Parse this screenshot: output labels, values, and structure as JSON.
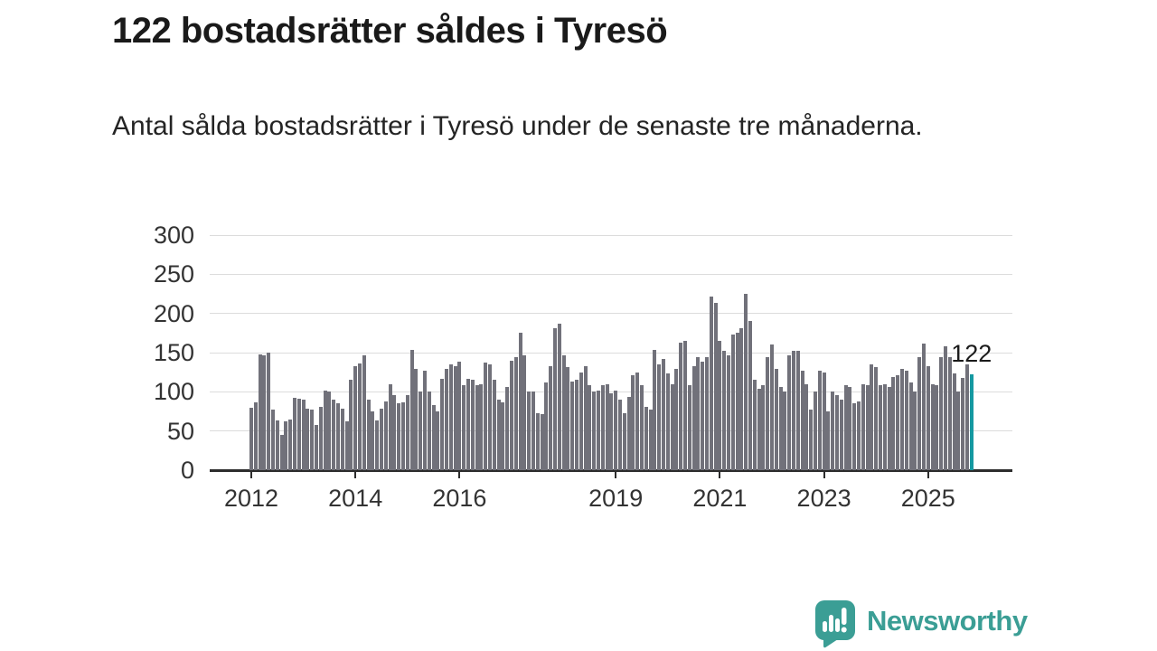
{
  "header": {
    "title": "122 bostadsrätter såldes i Tyresö",
    "subtitle": "Antal sålda bostadsrätter i Tyresö under de senaste tre månaderna."
  },
  "chart_data": {
    "type": "bar",
    "title": "122 bostadsrätter såldes i Tyresö",
    "subtitle": "Antal sålda bostadsrätter i Tyresö under de senaste tre månaderna.",
    "x_start": "2012-01",
    "frequency": "monthly",
    "values": [
      80,
      87,
      148,
      147,
      150,
      77,
      63,
      45,
      62,
      65,
      92,
      91,
      90,
      79,
      77,
      58,
      81,
      102,
      100,
      90,
      85,
      79,
      62,
      115,
      133,
      136,
      146,
      90,
      75,
      63,
      79,
      88,
      110,
      96,
      85,
      87,
      96,
      153,
      129,
      100,
      127,
      100,
      83,
      75,
      117,
      129,
      135,
      133,
      138,
      108,
      117,
      115,
      108,
      110,
      137,
      135,
      115,
      90,
      87,
      106,
      140,
      144,
      175,
      146,
      100,
      100,
      73,
      71,
      112,
      133,
      181,
      187,
      146,
      131,
      113,
      115,
      125,
      133,
      108,
      100,
      102,
      108,
      110,
      98,
      102,
      90,
      73,
      94,
      121,
      125,
      108,
      81,
      77,
      154,
      135,
      142,
      123,
      110,
      129,
      163,
      165,
      108,
      133,
      144,
      138,
      144,
      221,
      213,
      165,
      152,
      146,
      173,
      175,
      181,
      225,
      190,
      115,
      104,
      108,
      144,
      160,
      129,
      106,
      100,
      146,
      152,
      152,
      127,
      110,
      77,
      100,
      127,
      125,
      75,
      100,
      96,
      90,
      108,
      106,
      85,
      88,
      110,
      108,
      135,
      131,
      108,
      110,
      106,
      119,
      121,
      129,
      127,
      112,
      100,
      144,
      162,
      133,
      110,
      108,
      144,
      158,
      144,
      123,
      100,
      118,
      135,
      122
    ],
    "ylim": [
      0,
      300
    ],
    "yticks": [
      0,
      50,
      100,
      150,
      200,
      250,
      300
    ],
    "x_tick_labels": [
      "2012",
      "2014",
      "2016",
      "2019",
      "2021",
      "2023",
      "2025"
    ],
    "x_tick_month_index": [
      0,
      24,
      48,
      84,
      108,
      132,
      156
    ],
    "highlight": {
      "index": 166,
      "value": 122,
      "label": "122"
    },
    "grid": true,
    "legend": "none"
  },
  "footer": {
    "brand": "Newsworthy"
  },
  "colors": {
    "bar": "#71717a",
    "accent": "#1599a1",
    "brand": "#3b9e95",
    "grid": "#dcdcdc",
    "axis": "#2d2d2d",
    "txt": "#1a1a1a",
    "axis-txt": "#333333"
  }
}
